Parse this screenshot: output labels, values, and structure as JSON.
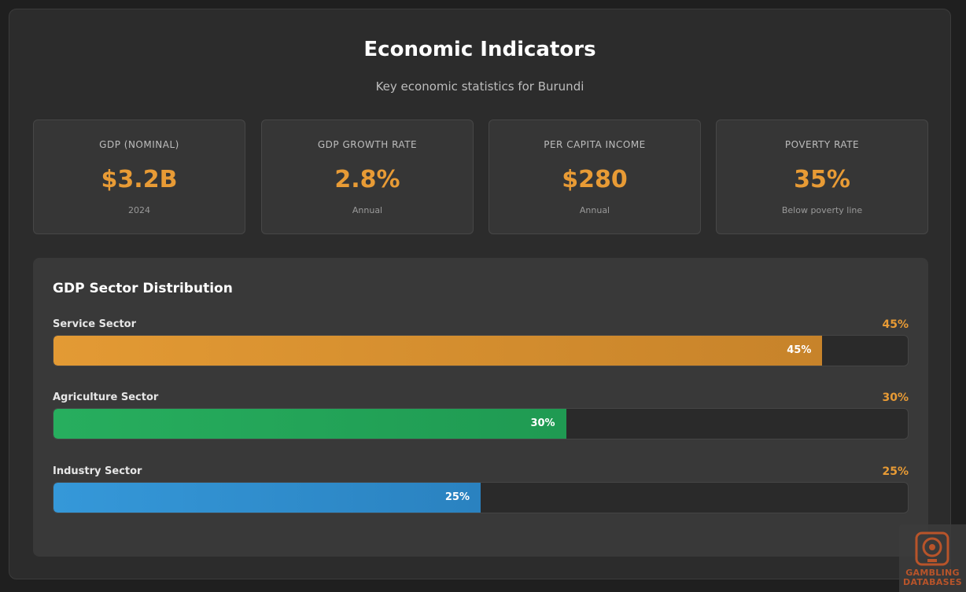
{
  "header": {
    "title": "Economic Indicators",
    "subtitle": "Key economic statistics for Burundi"
  },
  "cards": [
    {
      "label": "GDP (NOMINAL)",
      "value": "$3.2B",
      "note": "2024"
    },
    {
      "label": "GDP GROWTH RATE",
      "value": "2.8%",
      "note": "Annual"
    },
    {
      "label": "PER CAPITA INCOME",
      "value": "$280",
      "note": "Annual"
    },
    {
      "label": "POVERTY RATE",
      "value": "35%",
      "note": "Below poverty line"
    }
  ],
  "sectors": {
    "title": "GDP Sector Distribution",
    "items": [
      {
        "name": "Service Sector",
        "percent_label": "45%",
        "bar_label": "45%",
        "value": 45,
        "color": "#e39a34"
      },
      {
        "name": "Agriculture Sector",
        "percent_label": "30%",
        "bar_label": "30%",
        "value": 30,
        "color": "#27ae5e"
      },
      {
        "name": "Industry Sector",
        "percent_label": "25%",
        "bar_label": "25%",
        "value": 25,
        "color": "#3598d9"
      }
    ]
  },
  "colors": {
    "accent": "#e89b35",
    "background": "#2c2c2c"
  },
  "watermark": {
    "line1": "GAMBLING",
    "line2": "DATABASES"
  }
}
